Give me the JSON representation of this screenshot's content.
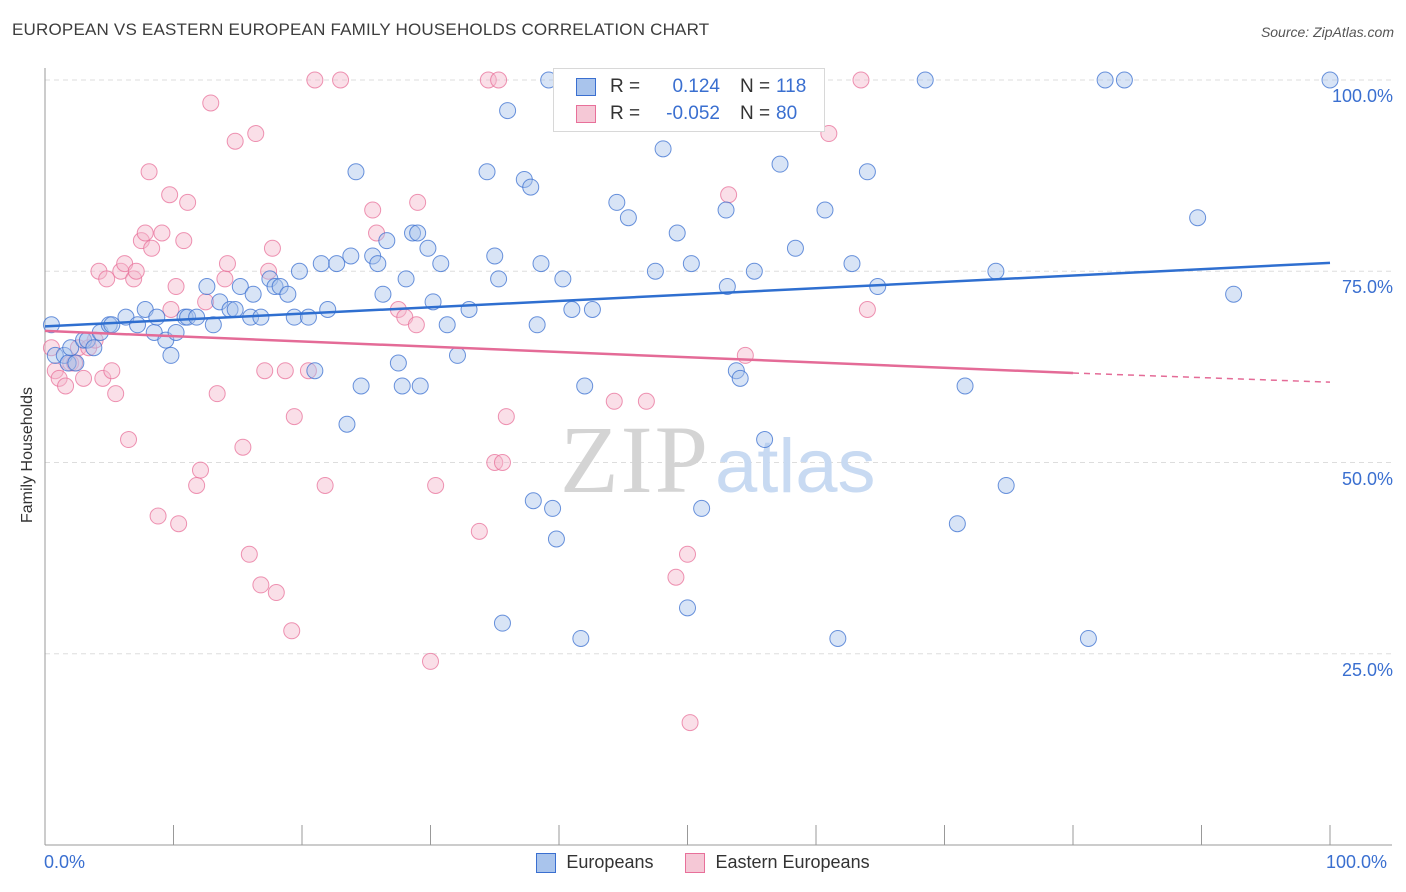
{
  "header": {
    "title": "EUROPEAN VS EASTERN EUROPEAN FAMILY HOUSEHOLDS CORRELATION CHART",
    "source": "Source: ZipAtlas.com"
  },
  "legend": {
    "rows": [
      {
        "r_label": "R =",
        "r_value": "0.124",
        "n_label": "N =",
        "n_value": "118"
      },
      {
        "r_label": "R =",
        "r_value": "-0.052",
        "n_label": "N =",
        "n_value": "80"
      }
    ]
  },
  "bottom_legend": {
    "europeans": "Europeans",
    "eastern_europeans": "Eastern Europeans"
  },
  "watermark": {
    "zip": "ZIP",
    "atlas": "atlas"
  },
  "colors": {
    "blue": "#3a6fd0",
    "blue_fill": "#a9c4ec",
    "blue_line": "#2f6fd0",
    "pink": "#e8709a",
    "pink_fill": "#f5b9cc",
    "pink_line": "#e46b97",
    "axis_text": "#3a6fd0",
    "grid": "#dddddd"
  },
  "chart_data": {
    "type": "scatter",
    "title": "EUROPEAN VS EASTERN EUROPEAN FAMILY HOUSEHOLDS CORRELATION CHART",
    "xlabel": "",
    "ylabel": "Family Households",
    "xlim": [
      0,
      100
    ],
    "ylim": [
      0,
      100
    ],
    "x_tick_labels": [
      "0.0%",
      "100.0%"
    ],
    "y_ticks": [
      {
        "value": 100,
        "label": "100.0%"
      },
      {
        "value": 75,
        "label": "75.0%"
      },
      {
        "value": 50,
        "label": "50.0%"
      },
      {
        "value": 25,
        "label": "25.0%"
      }
    ],
    "grid": true,
    "legend_position": "top-center",
    "series": [
      {
        "name": "Europeans",
        "color": "#3a6fd0",
        "trend": {
          "x0": 0,
          "y0": 67.8,
          "x1": 100,
          "y1": 76.1
        },
        "points": [
          [
            0.5,
            68
          ],
          [
            0.8,
            64
          ],
          [
            1.5,
            64
          ],
          [
            1.8,
            63
          ],
          [
            2.0,
            65
          ],
          [
            2.4,
            63
          ],
          [
            3.0,
            66
          ],
          [
            3.3,
            66
          ],
          [
            3.8,
            65
          ],
          [
            4.3,
            67
          ],
          [
            5.0,
            68
          ],
          [
            5.2,
            68
          ],
          [
            6.3,
            69
          ],
          [
            7.2,
            68
          ],
          [
            7.8,
            70
          ],
          [
            8.5,
            67
          ],
          [
            8.7,
            69
          ],
          [
            9.4,
            66
          ],
          [
            9.8,
            64
          ],
          [
            10.2,
            67
          ],
          [
            10.9,
            69
          ],
          [
            11.1,
            69
          ],
          [
            11.8,
            69
          ],
          [
            12.6,
            73
          ],
          [
            13.1,
            68
          ],
          [
            13.6,
            71
          ],
          [
            14.4,
            70
          ],
          [
            14.8,
            70
          ],
          [
            15.2,
            73
          ],
          [
            16.0,
            69
          ],
          [
            16.2,
            72
          ],
          [
            16.8,
            69
          ],
          [
            17.5,
            74
          ],
          [
            17.9,
            73
          ],
          [
            18.3,
            73
          ],
          [
            18.9,
            72
          ],
          [
            19.4,
            69
          ],
          [
            19.8,
            75
          ],
          [
            20.5,
            69
          ],
          [
            21.0,
            62
          ],
          [
            21.5,
            76
          ],
          [
            22.0,
            70
          ],
          [
            22.7,
            76
          ],
          [
            23.5,
            55
          ],
          [
            23.8,
            77
          ],
          [
            24.2,
            88
          ],
          [
            24.6,
            60
          ],
          [
            25.5,
            77
          ],
          [
            25.9,
            76
          ],
          [
            26.3,
            72
          ],
          [
            26.6,
            79
          ],
          [
            27.5,
            63
          ],
          [
            27.8,
            60
          ],
          [
            28.1,
            74
          ],
          [
            28.6,
            80
          ],
          [
            29.0,
            80
          ],
          [
            29.2,
            60
          ],
          [
            29.8,
            78
          ],
          [
            30.2,
            71
          ],
          [
            30.8,
            76
          ],
          [
            31.3,
            68
          ],
          [
            32.1,
            64
          ],
          [
            33.0,
            70
          ],
          [
            34.4,
            88
          ],
          [
            35.0,
            77
          ],
          [
            35.3,
            74
          ],
          [
            35.6,
            29
          ],
          [
            36.0,
            96
          ],
          [
            37.3,
            87
          ],
          [
            37.8,
            86
          ],
          [
            38.0,
            45
          ],
          [
            38.3,
            68
          ],
          [
            38.6,
            76
          ],
          [
            39.2,
            100
          ],
          [
            39.5,
            44
          ],
          [
            39.8,
            40
          ],
          [
            40.3,
            74
          ],
          [
            41.0,
            70
          ],
          [
            41.7,
            27
          ],
          [
            42.0,
            60
          ],
          [
            42.6,
            70
          ],
          [
            44.5,
            84
          ],
          [
            45.4,
            82
          ],
          [
            47.5,
            75
          ],
          [
            48.1,
            91
          ],
          [
            49.2,
            80
          ],
          [
            50.0,
            31
          ],
          [
            50.3,
            76
          ],
          [
            51.1,
            44
          ],
          [
            51.5,
            96
          ],
          [
            53.0,
            83
          ],
          [
            53.1,
            73
          ],
          [
            53.8,
            62
          ],
          [
            54.1,
            61
          ],
          [
            55.2,
            75
          ],
          [
            56.0,
            53
          ],
          [
            57.2,
            89
          ],
          [
            58.4,
            78
          ],
          [
            60.7,
            83
          ],
          [
            61.7,
            27
          ],
          [
            62.8,
            76
          ],
          [
            64.0,
            88
          ],
          [
            64.8,
            73
          ],
          [
            68.5,
            100
          ],
          [
            71.0,
            42
          ],
          [
            71.6,
            60
          ],
          [
            74.0,
            75
          ],
          [
            74.8,
            47
          ],
          [
            81.2,
            27
          ],
          [
            82.5,
            100
          ],
          [
            84.0,
            100
          ],
          [
            89.7,
            82
          ],
          [
            92.5,
            72
          ],
          [
            100.0,
            100
          ]
        ]
      },
      {
        "name": "Eastern Europeans",
        "color": "#e8709a",
        "trend": {
          "x0": 0,
          "y0": 67.2,
          "x1": 80,
          "y1": 61.7,
          "dashed_to": {
            "x": 100,
            "y": 60.5
          }
        },
        "points": [
          [
            0.5,
            65
          ],
          [
            0.8,
            62
          ],
          [
            1.1,
            61
          ],
          [
            1.6,
            60
          ],
          [
            2.0,
            63
          ],
          [
            2.3,
            63
          ],
          [
            2.6,
            65
          ],
          [
            3.0,
            61
          ],
          [
            3.4,
            65
          ],
          [
            3.9,
            66
          ],
          [
            4.2,
            75
          ],
          [
            4.5,
            61
          ],
          [
            4.8,
            74
          ],
          [
            5.2,
            62
          ],
          [
            5.5,
            59
          ],
          [
            5.9,
            75
          ],
          [
            6.2,
            76
          ],
          [
            6.5,
            53
          ],
          [
            6.9,
            74
          ],
          [
            7.1,
            75
          ],
          [
            7.5,
            79
          ],
          [
            7.8,
            80
          ],
          [
            8.1,
            88
          ],
          [
            8.3,
            78
          ],
          [
            8.8,
            43
          ],
          [
            9.1,
            80
          ],
          [
            9.7,
            85
          ],
          [
            9.8,
            70
          ],
          [
            10.2,
            73
          ],
          [
            10.4,
            42
          ],
          [
            10.8,
            79
          ],
          [
            11.1,
            84
          ],
          [
            11.8,
            47
          ],
          [
            12.1,
            49
          ],
          [
            12.5,
            71
          ],
          [
            12.9,
            97
          ],
          [
            13.4,
            59
          ],
          [
            14.0,
            74
          ],
          [
            14.2,
            76
          ],
          [
            14.8,
            92
          ],
          [
            15.4,
            52
          ],
          [
            15.9,
            38
          ],
          [
            16.4,
            93
          ],
          [
            16.8,
            34
          ],
          [
            17.1,
            62
          ],
          [
            17.4,
            75
          ],
          [
            17.7,
            78
          ],
          [
            18.0,
            33
          ],
          [
            18.7,
            62
          ],
          [
            19.2,
            28
          ],
          [
            19.4,
            56
          ],
          [
            20.5,
            62
          ],
          [
            21.0,
            100
          ],
          [
            21.8,
            47
          ],
          [
            23.0,
            100
          ],
          [
            25.5,
            83
          ],
          [
            25.8,
            80
          ],
          [
            27.5,
            70
          ],
          [
            28.0,
            69
          ],
          [
            29.0,
            84
          ],
          [
            30.0,
            24
          ],
          [
            30.4,
            47
          ],
          [
            33.8,
            41
          ],
          [
            34.5,
            100
          ],
          [
            35.0,
            50
          ],
          [
            35.3,
            100
          ],
          [
            35.6,
            50
          ],
          [
            35.9,
            56
          ],
          [
            44.3,
            58
          ],
          [
            46.5,
            100
          ],
          [
            46.8,
            58
          ],
          [
            49.1,
            35
          ],
          [
            50.0,
            38
          ],
          [
            50.2,
            16
          ],
          [
            53.2,
            85
          ],
          [
            54.5,
            64
          ],
          [
            61.0,
            93
          ],
          [
            63.5,
            100
          ],
          [
            64.0,
            70
          ],
          [
            28.9,
            68
          ]
        ]
      }
    ]
  }
}
